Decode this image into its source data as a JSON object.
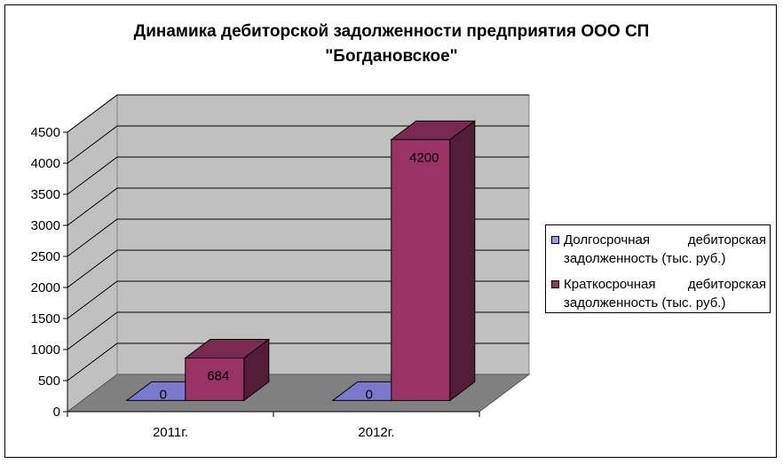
{
  "chart_data": {
    "type": "bar",
    "title": "Динамика дебиторской задолженности предприятия ООО СП\n\"Богдановское\"",
    "categories": [
      "2011г.",
      "2012г."
    ],
    "series": [
      {
        "name": "Долгосрочная   дебиторская задолженность (тыс. руб.)",
        "values": [
          0,
          0
        ],
        "color": "#9999ff"
      },
      {
        "name": "Краткосрочная дебиторская задолженность (тыс. руб.)",
        "values": [
          684,
          4200
        ],
        "color": "#993366"
      }
    ],
    "y_ticks": [
      "0",
      "500",
      "1000",
      "1500",
      "2000",
      "2500",
      "3000",
      "3500",
      "4000",
      "4500"
    ],
    "ylim": [
      0,
      4500
    ],
    "data_labels": [
      [
        "0",
        "0"
      ],
      [
        "684",
        "4200"
      ]
    ],
    "grid": true,
    "legend_position": "right",
    "three_d": true,
    "colors": {
      "wall": "#c0c0c0",
      "floor": "#808080",
      "side_wall": "#c0c0c0"
    }
  }
}
